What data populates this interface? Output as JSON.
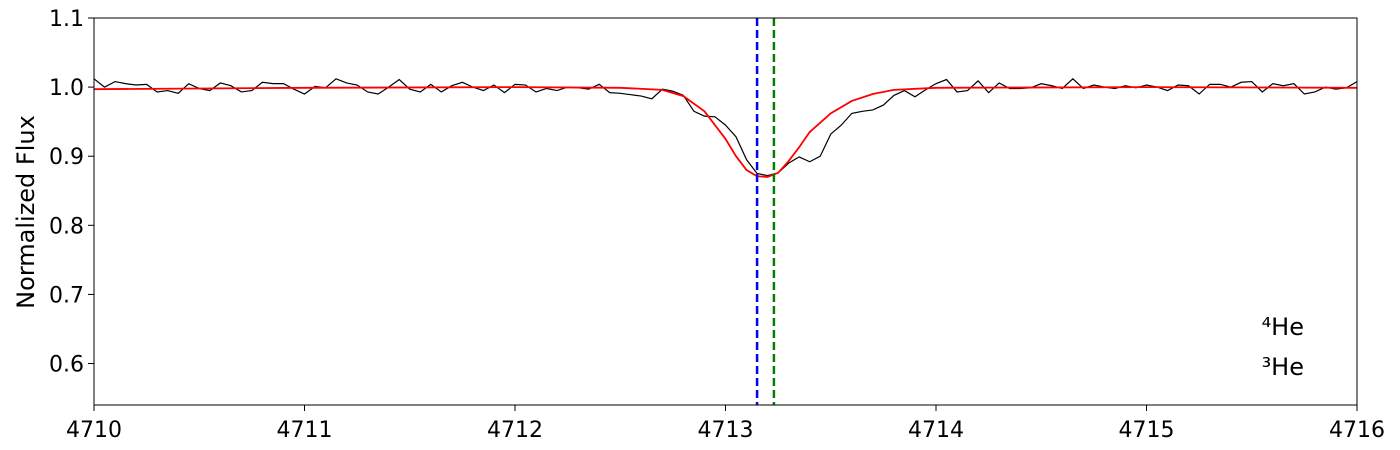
{
  "chart_data": {
    "type": "line",
    "y_label": "Normalized Flux",
    "xlim": [
      4710,
      4716
    ],
    "xticks": [
      4710,
      4711,
      4712,
      4713,
      4714,
      4715,
      4716
    ],
    "ylim": [
      0.54,
      1.1
    ],
    "yticks": [
      0.6,
      0.7,
      0.8,
      0.9,
      {
        "value": 1,
        "label": "1.0"
      },
      1.1
    ],
    "series": [
      {
        "color": "#000000",
        "width": 1.2,
        "x": [
          4710.0,
          4710.05,
          4710.1,
          4710.15,
          4710.2,
          4710.25,
          4710.3,
          4710.35,
          4710.4,
          4710.45,
          4710.5,
          4710.55,
          4710.6,
          4710.65,
          4710.7,
          4710.75,
          4710.8,
          4710.85,
          4710.9,
          4710.95,
          4711.0,
          4711.05,
          4711.1,
          4711.15,
          4711.2,
          4711.25,
          4711.3,
          4711.35,
          4711.4,
          4711.45,
          4711.5,
          4711.55,
          4711.6,
          4711.65,
          4711.7,
          4711.75,
          4711.8,
          4711.85,
          4711.9,
          4711.95,
          4712.0,
          4712.05,
          4712.1,
          4712.15,
          4712.2,
          4712.25,
          4712.3,
          4712.35,
          4712.4,
          4712.45,
          4712.5,
          4712.55,
          4712.6,
          4712.65,
          4712.7,
          4712.75,
          4712.8,
          4712.85,
          4712.9,
          4712.95,
          4713.0,
          4713.05,
          4713.1,
          4713.15,
          4713.2,
          4713.25,
          4713.3,
          4713.35,
          4713.4,
          4713.45,
          4713.5,
          4713.55,
          4713.6,
          4713.65,
          4713.7,
          4713.75,
          4713.8,
          4713.85,
          4713.9,
          4713.95,
          4714.0,
          4714.05,
          4714.1,
          4714.15,
          4714.2,
          4714.25,
          4714.3,
          4714.35,
          4714.4,
          4714.45,
          4714.5,
          4714.55,
          4714.6,
          4714.65,
          4714.7,
          4714.75,
          4714.8,
          4714.85,
          4714.9,
          4714.95,
          4715.0,
          4715.05,
          4715.1,
          4715.15,
          4715.2,
          4715.25,
          4715.3,
          4715.35,
          4715.4,
          4715.45,
          4715.5,
          4715.55,
          4715.6,
          4715.65,
          4715.7,
          4715.75,
          4715.8,
          4715.85,
          4715.9,
          4715.95,
          4716.0
        ],
        "values": [
          1.012,
          1.0,
          1.008,
          1.005,
          1.003,
          1.004,
          0.993,
          0.995,
          0.991,
          1.005,
          0.998,
          0.995,
          1.006,
          1.002,
          0.993,
          0.995,
          1.007,
          1.005,
          1.005,
          0.997,
          0.99,
          1.001,
          0.999,
          1.012,
          1.006,
          1.003,
          0.993,
          0.99,
          1.0,
          1.011,
          0.997,
          0.993,
          1.004,
          0.993,
          1.002,
          1.007,
          1.0,
          0.995,
          1.003,
          0.992,
          1.004,
          1.003,
          0.993,
          0.998,
          0.995,
          1.0,
          0.999,
          0.997,
          1.004,
          0.992,
          0.991,
          0.989,
          0.987,
          0.983,
          0.997,
          0.994,
          0.988,
          0.965,
          0.958,
          0.957,
          0.945,
          0.928,
          0.895,
          0.875,
          0.872,
          0.876,
          0.89,
          0.899,
          0.892,
          0.9,
          0.932,
          0.945,
          0.962,
          0.965,
          0.967,
          0.974,
          0.988,
          0.995,
          0.986,
          0.996,
          1.005,
          1.011,
          0.993,
          0.995,
          1.009,
          0.992,
          1.006,
          0.998,
          0.998,
          0.999,
          1.005,
          1.002,
          0.998,
          1.012,
          0.998,
          1.003,
          1.0,
          0.998,
          1.002,
          0.999,
          1.003,
          1.0,
          0.995,
          1.003,
          1.002,
          0.99,
          1.004,
          1.004,
          1.0,
          1.007,
          1.008,
          0.993,
          1.005,
          1.002,
          1.005,
          0.99,
          0.993,
          1.0,
          0.997,
          0.999,
          1.008
        ]
      },
      {
        "color": "#ff0000",
        "width": 1.8,
        "x": [
          4710,
          4711,
          4712,
          4712.5,
          4712.7,
          4712.8,
          4712.9,
          4713.0,
          4713.05,
          4713.1,
          4713.15,
          4713.2,
          4713.25,
          4713.3,
          4713.35,
          4713.4,
          4713.5,
          4713.6,
          4713.7,
          4713.8,
          4714,
          4715,
          4716
        ],
        "values": [
          0.997,
          0.999,
          1.0,
          0.999,
          0.996,
          0.987,
          0.965,
          0.925,
          0.9,
          0.88,
          0.871,
          0.87,
          0.876,
          0.893,
          0.913,
          0.935,
          0.962,
          0.98,
          0.99,
          0.996,
          0.999,
          1.0,
          0.999
        ]
      }
    ],
    "vlines": [
      {
        "x": 4713.15,
        "color": "#0000ff",
        "label": "⁴He"
      },
      {
        "x": 4713.23,
        "color": "#008000",
        "label": "³He"
      }
    ]
  }
}
